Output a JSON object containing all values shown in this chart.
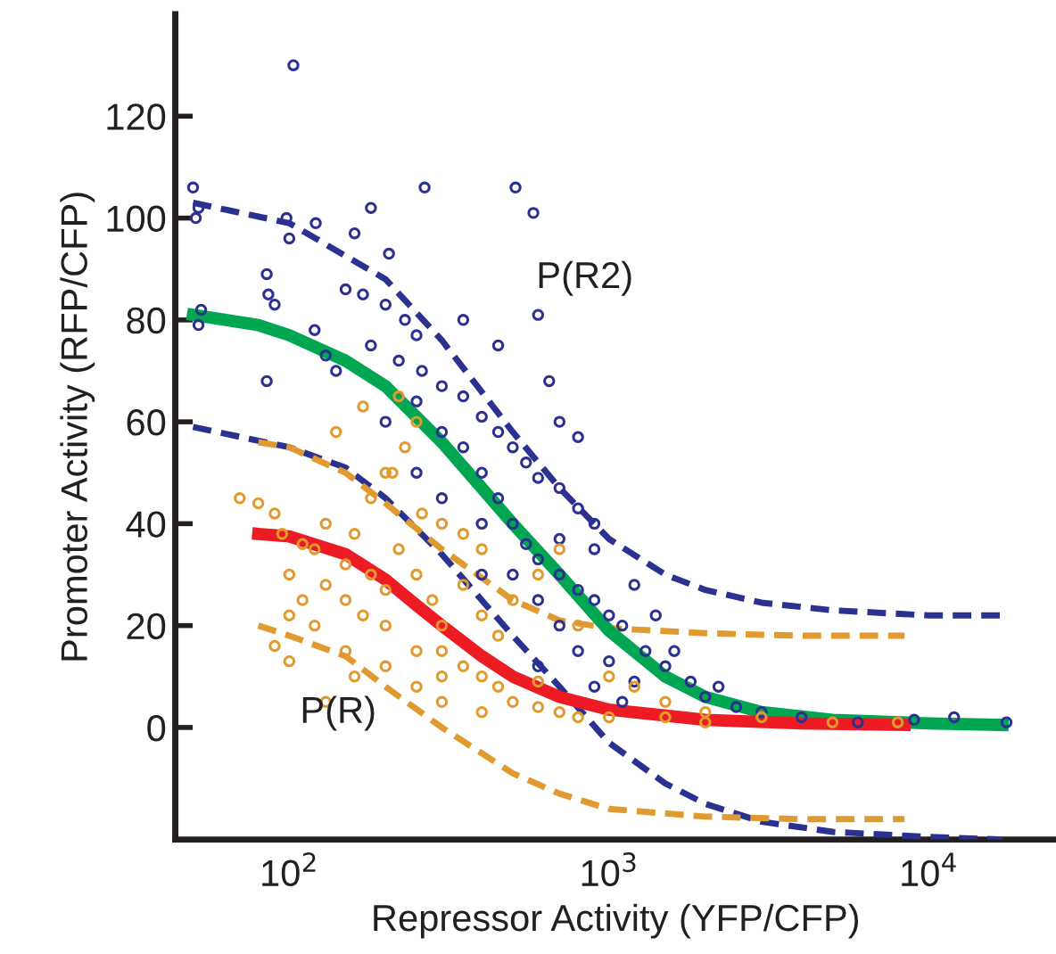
{
  "chart_data": {
    "type": "scatter",
    "xlabel": "Repressor Activity (YFP/CFP)",
    "ylabel": "Promoter Activity (RFP/CFP)",
    "log": "x",
    "xlim": [
      44,
      25000
    ],
    "ylim": [
      -22,
      140
    ],
    "xticks": [
      {
        "value": 100,
        "label": "10$^{2}$"
      },
      {
        "value": 1000,
        "label": "10$^{3}$"
      },
      {
        "value": 10000,
        "label": "10$^{4}$"
      }
    ],
    "yticks": [
      0,
      20,
      40,
      60,
      80,
      100,
      120
    ],
    "grid": false,
    "legend": false,
    "annotations": [
      "P(R2)",
      "P(R)"
    ],
    "series": [
      {
        "marker": "circle",
        "color": "#2b3190",
        "x": [
          50,
          52,
          51,
          53,
          52,
          103,
          100,
          98,
          121,
          85,
          86,
          90,
          85,
          160,
          180,
          205,
          265,
          510,
          580,
          600,
          150,
          170,
          200,
          230,
          250,
          120,
          130,
          140,
          180,
          220,
          260,
          300,
          350,
          400,
          450,
          500,
          550,
          600,
          700,
          800,
          900,
          300,
          350,
          400,
          450,
          500,
          550,
          600,
          700,
          800,
          900,
          1000,
          1100,
          1300,
          1500,
          1800,
          2000,
          2500,
          3000,
          4000,
          6000,
          9000,
          12000,
          17500,
          250,
          300,
          400,
          500,
          700,
          800,
          1000,
          1200,
          600,
          700,
          800,
          650,
          450,
          350,
          200,
          250,
          1200,
          1400,
          900,
          1600,
          2200,
          700,
          400,
          600,
          900,
          1100
        ],
        "values": [
          106,
          102,
          100,
          82,
          79,
          130,
          96,
          100,
          99,
          89,
          85,
          83,
          68,
          97,
          102,
          93,
          106,
          106,
          101,
          81,
          86,
          85,
          83,
          80,
          77,
          78,
          73,
          70,
          75,
          72,
          70,
          67,
          65,
          61,
          58,
          55,
          52,
          49,
          47,
          43,
          40,
          58,
          55,
          50,
          45,
          40,
          36,
          33,
          30,
          27,
          25,
          22,
          20,
          15,
          12,
          9,
          6,
          4,
          3,
          2,
          1,
          1.5,
          2,
          1,
          50,
          45,
          40,
          30,
          20,
          15,
          13,
          9,
          25,
          60,
          57,
          68,
          75,
          80,
          60,
          64,
          28,
          22,
          35,
          15,
          8,
          37,
          30,
          12,
          8,
          5
        ]
      },
      {
        "marker": "circle",
        "color": "#e09a30",
        "x": [
          70,
          80,
          90,
          95,
          110,
          120,
          130,
          100,
          110,
          120,
          130,
          150,
          160,
          150,
          180,
          200,
          170,
          200,
          220,
          250,
          280,
          300,
          180,
          200,
          230,
          250,
          220,
          260,
          300,
          350,
          400,
          350,
          400,
          300,
          350,
          400,
          450,
          500,
          600,
          700,
          800,
          1000,
          1500,
          2000,
          3000,
          5000,
          8000,
          250,
          300,
          200,
          150,
          100,
          90,
          100,
          450,
          500,
          600,
          700,
          800,
          1000,
          1200,
          1500,
          2000,
          400,
          300,
          250,
          600,
          140,
          170,
          210,
          160,
          130
        ],
        "values": [
          45,
          44,
          42,
          38,
          36,
          35,
          40,
          30,
          25,
          20,
          28,
          32,
          38,
          25,
          30,
          27,
          22,
          20,
          35,
          30,
          25,
          20,
          45,
          50,
          55,
          60,
          65,
          42,
          40,
          38,
          35,
          28,
          22,
          15,
          12,
          10,
          8,
          5,
          4,
          3,
          2,
          2,
          2,
          3,
          2,
          1,
          1,
          15,
          10,
          12,
          15,
          13,
          16,
          22,
          18,
          25,
          30,
          35,
          20,
          10,
          8,
          5,
          1,
          3,
          5,
          8,
          9,
          58,
          63,
          50,
          10,
          5
        ]
      },
      {
        "type": "line",
        "line_style": "dashed",
        "color": "#2b3190",
        "x": [
          50,
          100,
          200,
          300,
          500,
          700,
          1000,
          1500,
          2000,
          3000,
          5000,
          10000,
          17000
        ],
        "values": [
          103,
          99,
          88,
          76,
          58,
          47,
          37,
          30,
          27,
          24.5,
          23,
          22,
          22
        ]
      },
      {
        "type": "line",
        "line_style": "dashed",
        "color": "#2b3190",
        "x": [
          50,
          100,
          150,
          200,
          300,
          500,
          700,
          1000,
          1500,
          2000,
          3000,
          5000,
          10000,
          17000
        ],
        "values": [
          59,
          55,
          51,
          45,
          34,
          18,
          8,
          -3,
          -11,
          -15,
          -18.5,
          -20.5,
          -21.5,
          -22
        ]
      },
      {
        "type": "line",
        "line_style": "dashed",
        "color": "#e09a30",
        "x": [
          80,
          100,
          150,
          200,
          300,
          500,
          700,
          1000,
          2000,
          4000,
          8400
        ],
        "values": [
          56,
          55,
          50,
          44,
          35,
          25,
          21,
          19.5,
          18.5,
          18,
          18
        ]
      },
      {
        "type": "line",
        "line_style": "dashed",
        "color": "#e09a30",
        "x": [
          80,
          100,
          150,
          200,
          300,
          500,
          700,
          1000,
          2000,
          4000,
          8400
        ],
        "values": [
          20,
          18,
          14,
          8,
          0,
          -9,
          -13,
          -16,
          -17.5,
          -18,
          -18
        ]
      },
      {
        "type": "line",
        "line_style": "solid",
        "color": "#00a651",
        "x": [
          50,
          80,
          100,
          150,
          200,
          300,
          400,
          500,
          700,
          1000,
          1500,
          2000,
          3000,
          5000,
          10000,
          17000
        ],
        "values": [
          81,
          79,
          77,
          72,
          67,
          56,
          47,
          40,
          30,
          19,
          10,
          6,
          3,
          1.5,
          0.8,
          0.5
        ]
      },
      {
        "type": "line",
        "line_style": "solid",
        "color": "#ed1c24",
        "x": [
          80,
          100,
          150,
          200,
          250,
          300,
          400,
          500,
          700,
          1000,
          2000,
          4000,
          8400
        ],
        "values": [
          38,
          37.5,
          34,
          29,
          24,
          20,
          14,
          10,
          6,
          3.5,
          1.5,
          0.8,
          0.5
        ]
      }
    ]
  }
}
